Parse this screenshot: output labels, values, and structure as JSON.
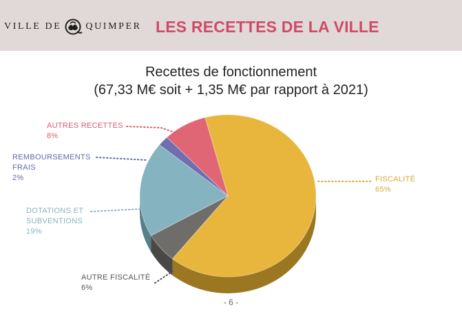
{
  "header": {
    "logo_left": "VILLE DE",
    "logo_right": "QUIMPER",
    "title": "LES RECETTES DE LA VILLE"
  },
  "chart_data": {
    "type": "pie",
    "title": "Recettes de fonctionnement",
    "subtitle": "(67,33 M€ soit + 1,35 M€ par rapport à 2021)",
    "slices": [
      {
        "label": "FISCALITÉ",
        "value": 65,
        "value_label": "65%",
        "color": "#e8b63c",
        "side": "#9c7722"
      },
      {
        "label": "AUTRE FISCALITÉ",
        "value": 6,
        "value_label": "6%",
        "color": "#6f6d6a",
        "side": "#4a4846"
      },
      {
        "label": "DOTATIONS ET SUBVENTIONS",
        "value": 19,
        "value_label": "19%",
        "color": "#86b3c0",
        "side": "#587f8a"
      },
      {
        "label": "REMBOURSEMENTS FRAIS",
        "value": 2,
        "value_label": "2%",
        "color": "#6d6fae",
        "side": "#4b4d7e"
      },
      {
        "label": "AUTRES RECETTES",
        "value": 8,
        "value_label": "8%",
        "color": "#e06676",
        "side": "#a04653"
      }
    ],
    "label_colors": {
      "FISCALITÉ": "#d4a93b",
      "AUTRE FISCALITÉ": "#555555",
      "DOTATIONS ET SUBVENTIONS": "#86b3c0",
      "REMBOURSEMENTS FRAIS": "#5f6aa8",
      "AUTRES RECETTES": "#d95a6e"
    },
    "labels": {
      "fiscalite_line1": "FISCALITÉ",
      "autre_fiscalite_line1": "AUTRE FISCALITÉ",
      "dotations_line1": "DOTATIONS ET",
      "dotations_line2": "SUBVENTIONS",
      "remboursements_line1": "REMBOURSEMENTS",
      "remboursements_line2": "FRAIS",
      "autres_line1": "AUTRES RECETTES"
    }
  },
  "footer": {
    "page_number": "- 6 -"
  }
}
